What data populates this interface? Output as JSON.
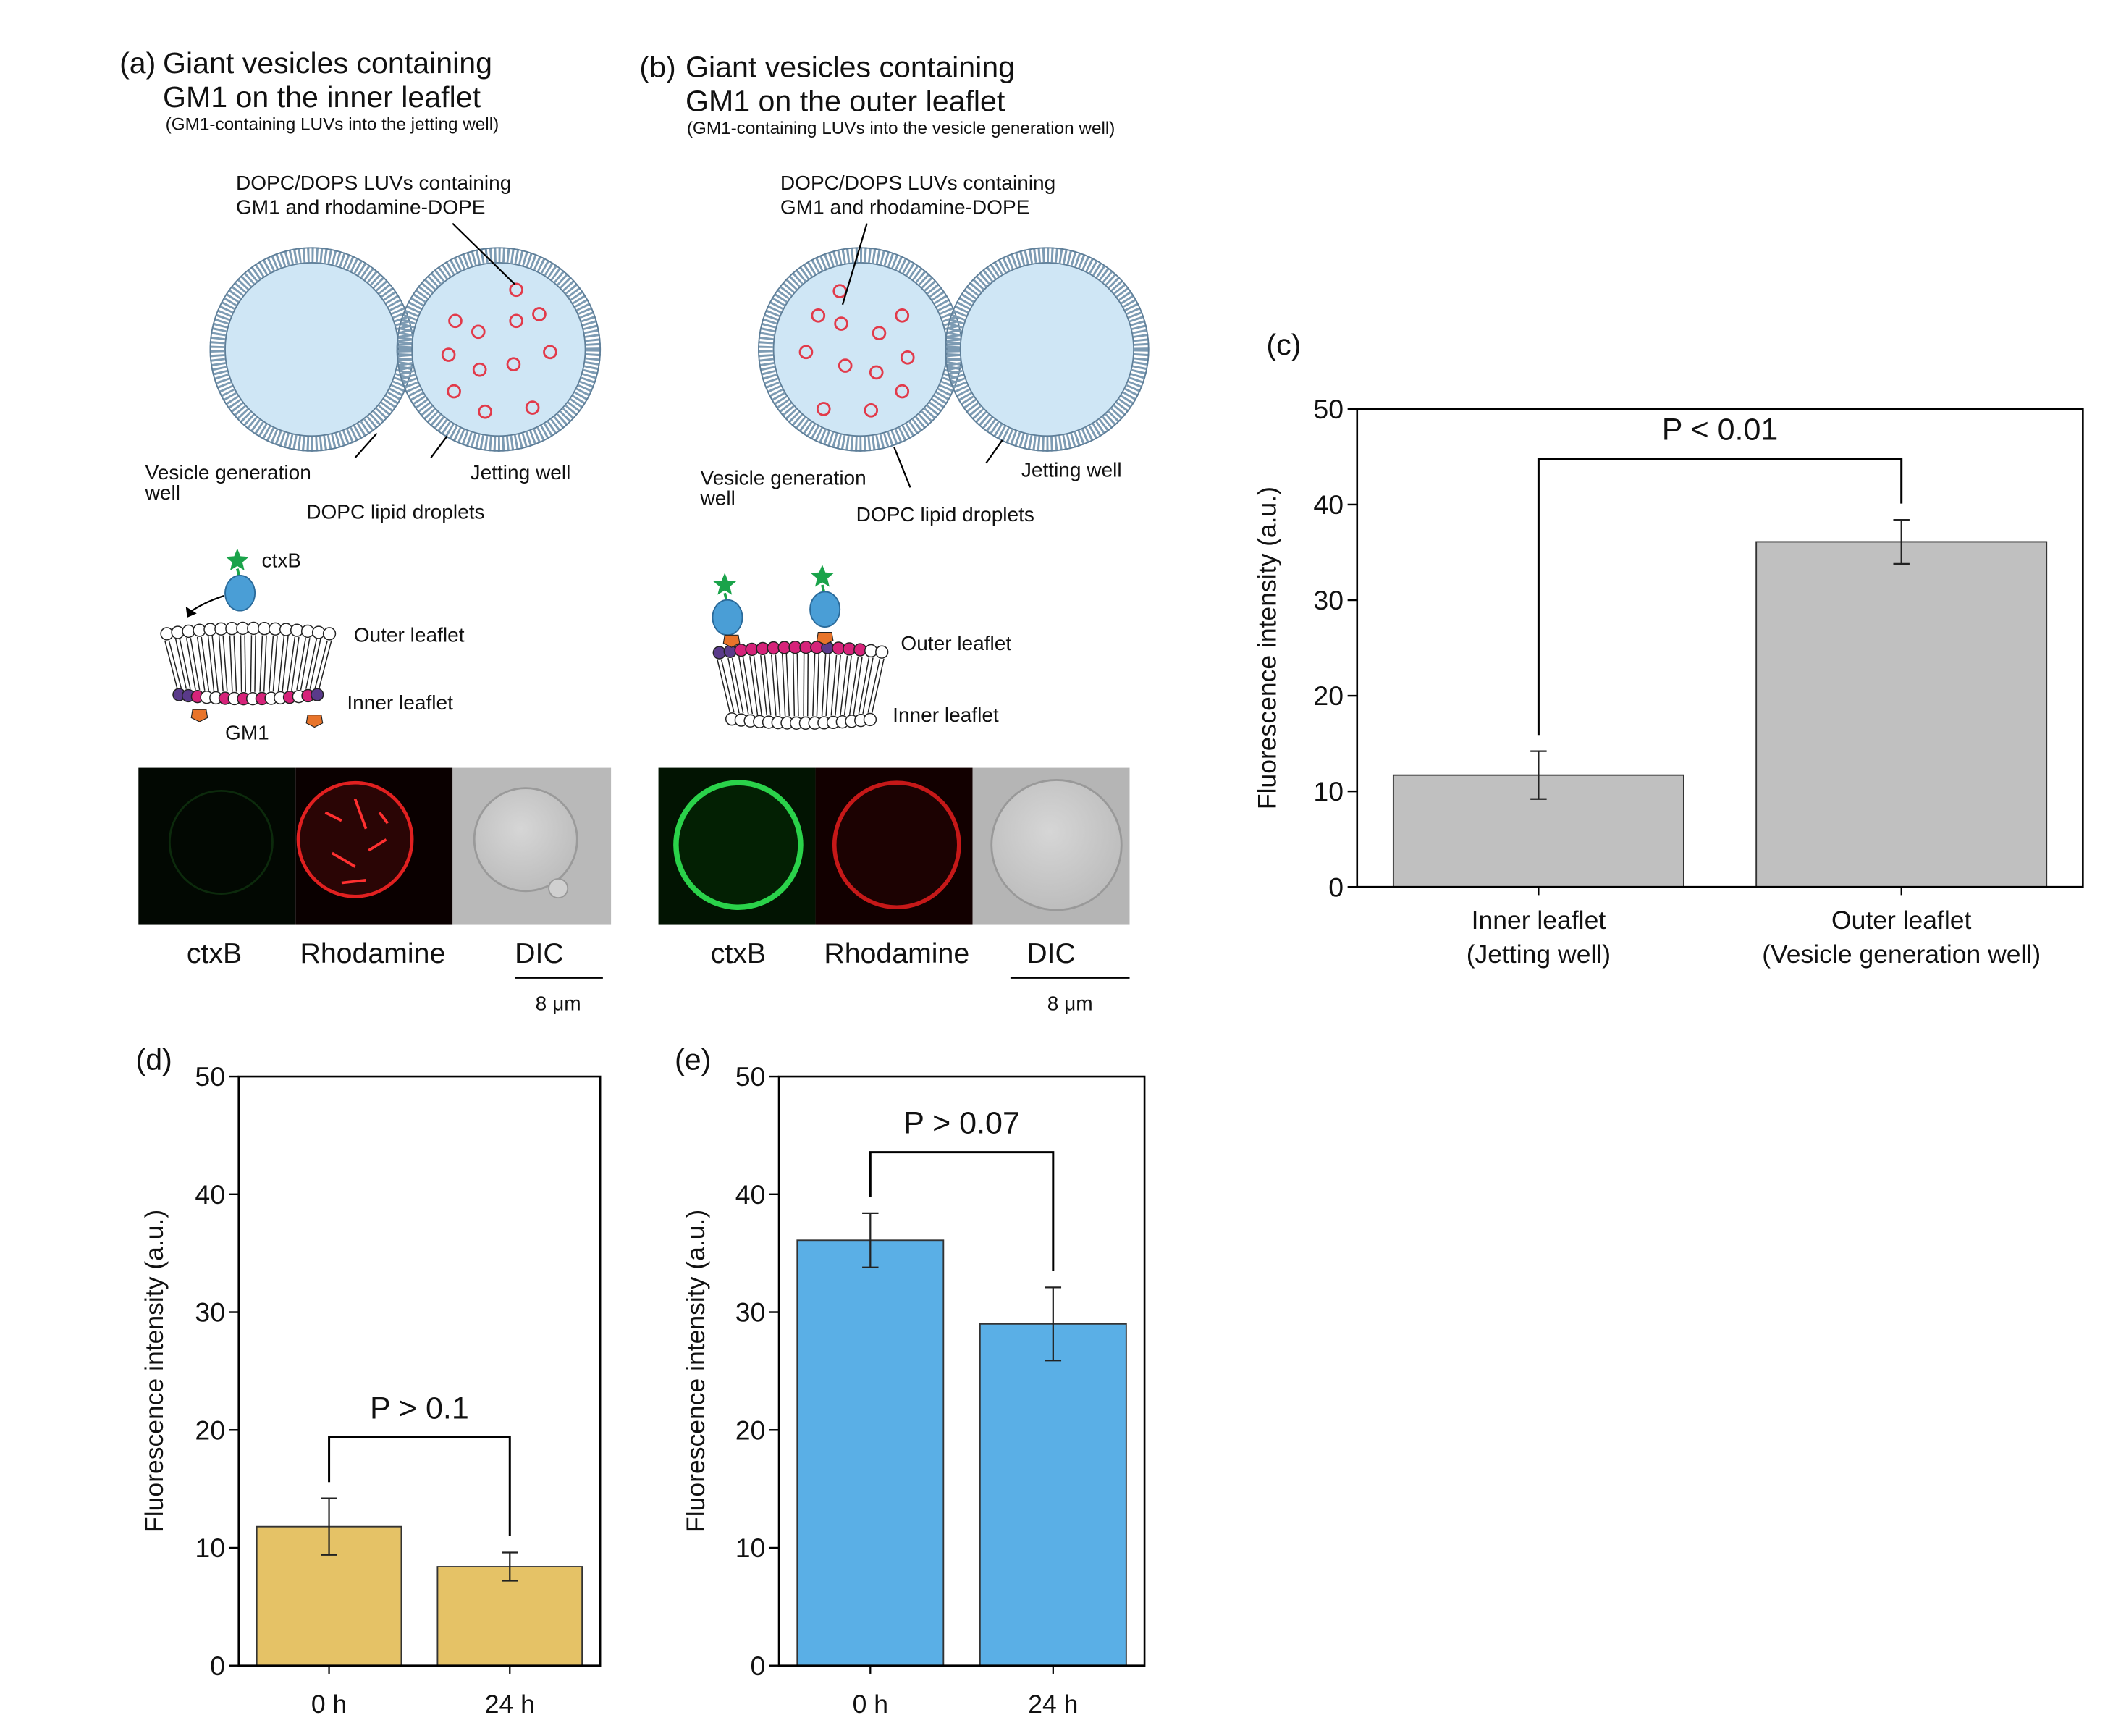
{
  "panel_a": {
    "label": "(a)",
    "title": [
      "Giant vesicles containing",
      "GM1 on the inner leaflet"
    ],
    "subtitle": "(GM1-containing LUVs into the jetting well)",
    "luv_label": [
      "DOPC/DOPS LUVs containing",
      "GM1 and rhodamine-DOPE"
    ],
    "left_well": [
      "Vesicle generation",
      "well"
    ],
    "right_well": "Jetting well",
    "droplets": "DOPC lipid droplets",
    "protein": "ctxB",
    "outer": "Outer leaflet",
    "inner": "Inner leaflet",
    "gm1": "GM1",
    "channels": [
      "ctxB",
      "Rhodamine",
      "DIC"
    ],
    "scale": "8 μm"
  },
  "panel_b": {
    "label": "(b)",
    "title": [
      "Giant vesicles containing",
      "GM1 on the outer leaflet"
    ],
    "subtitle": "(GM1-containing LUVs into the vesicle generation well)",
    "luv_label": [
      "DOPC/DOPS LUVs containing",
      "GM1 and rhodamine-DOPE"
    ],
    "left_well": [
      "Vesicle generation",
      "well"
    ],
    "right_well": "Jetting well",
    "droplets": "DOPC lipid droplets",
    "outer": "Outer leaflet",
    "inner": "Inner leaflet",
    "channels": [
      "ctxB",
      "Rhodamine",
      "DIC"
    ],
    "scale": "8 μm"
  },
  "chart_data": [
    {
      "type": "bar",
      "label": "(c)",
      "ylabel": "Fluorescence intensity (a.u.)",
      "categories": [
        "Inner leaflet",
        "Outer leaflet"
      ],
      "category_sublabels": [
        "(Jetting well)",
        "(Vesicle generation well)"
      ],
      "values": [
        11.7,
        36.1
      ],
      "errors": [
        2.5,
        2.3
      ],
      "color": "#c0c0c0",
      "ylim": [
        0,
        50
      ],
      "yticks": [
        0,
        10,
        20,
        30,
        40,
        50
      ],
      "annotation": "P < 0.01"
    },
    {
      "type": "bar",
      "label": "(d)",
      "ylabel": "Fluorescence intensity (a.u.)",
      "categories": [
        "0 h",
        "24 h"
      ],
      "values": [
        11.8,
        8.4
      ],
      "errors": [
        2.4,
        1.2
      ],
      "color": "#e5c266",
      "ylim": [
        0,
        50
      ],
      "yticks": [
        0,
        10,
        20,
        30,
        40,
        50
      ],
      "annotation": "P > 0.1"
    },
    {
      "type": "bar",
      "label": "(e)",
      "ylabel": "Fluorescence intensity (a.u.)",
      "categories": [
        "0 h",
        "24 h"
      ],
      "values": [
        36.1,
        29.0
      ],
      "errors": [
        2.3,
        3.1
      ],
      "color": "#5aafe6",
      "ylim": [
        0,
        50
      ],
      "yticks": [
        0,
        10,
        20,
        30,
        40,
        50
      ],
      "annotation": "P > 0.07"
    }
  ]
}
